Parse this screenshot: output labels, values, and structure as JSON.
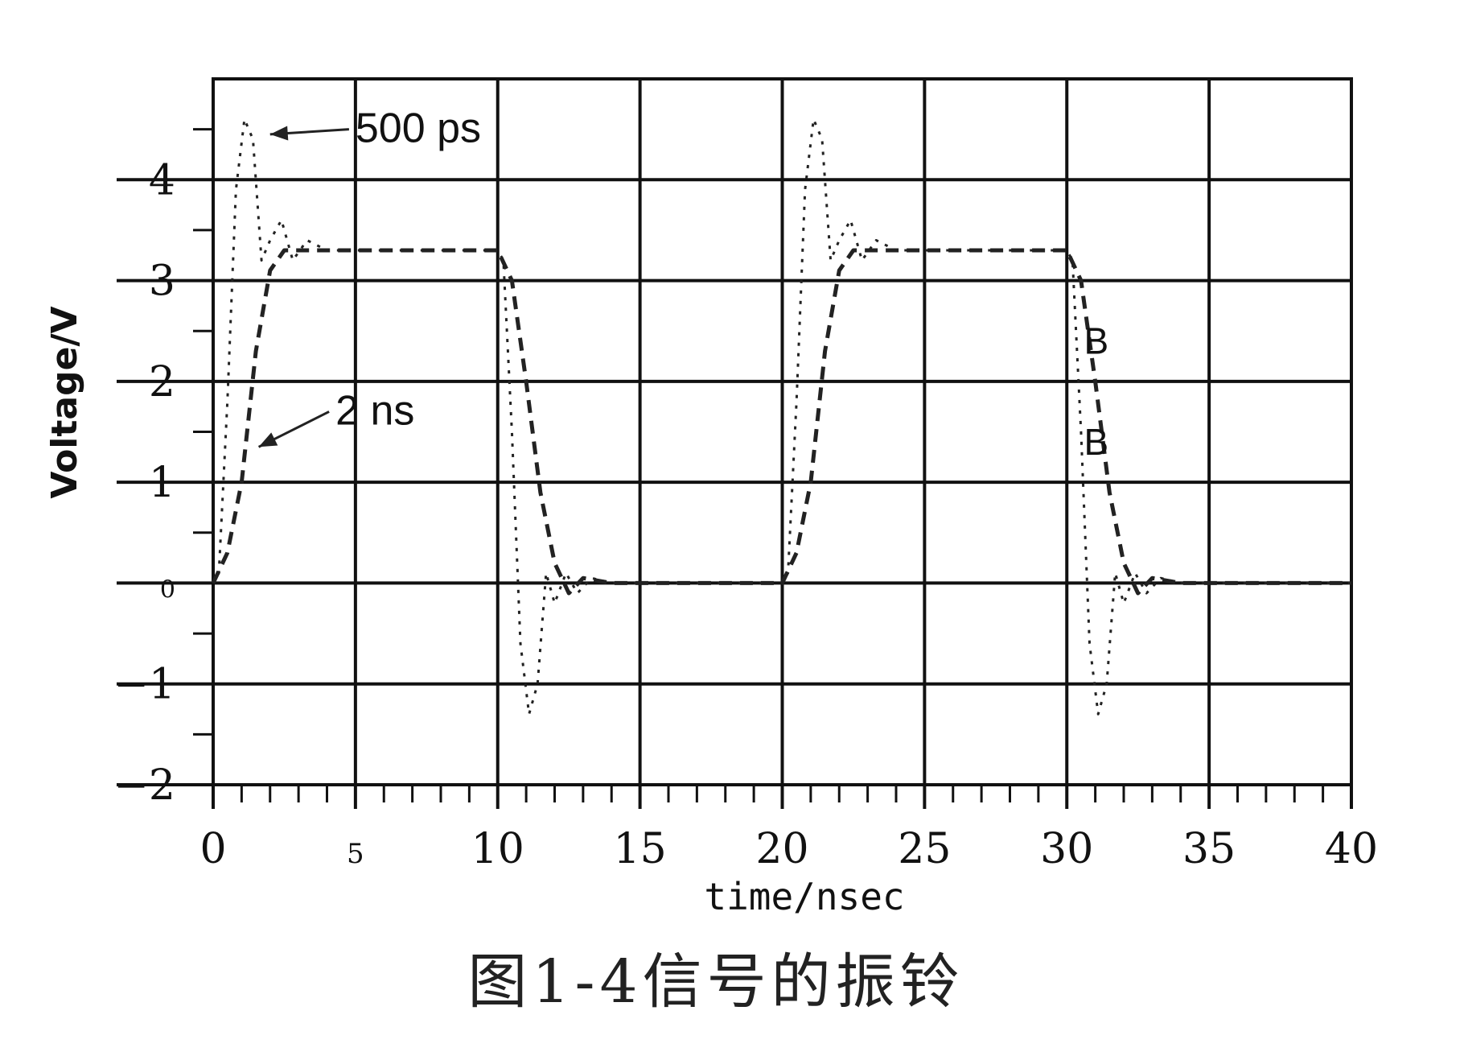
{
  "caption": "图1-4信号的振铃",
  "chart_data": {
    "type": "line",
    "title": "",
    "xlabel": "time/nsec",
    "ylabel": "Voltage/V",
    "xlim": [
      0,
      40
    ],
    "ylim": [
      -2,
      5
    ],
    "xticks": [
      0,
      5,
      10,
      15,
      20,
      25,
      30,
      35,
      40
    ],
    "xtick_labels": [
      "0",
      "5",
      "10",
      "15",
      "20",
      "25",
      "30",
      "35",
      "40"
    ],
    "yticks": [
      -2,
      -1,
      0,
      1,
      2,
      3,
      4
    ],
    "ytick_labels": [
      "−2",
      "−1",
      "0",
      "1",
      "2",
      "3",
      "4"
    ],
    "grid": true,
    "annotations": [
      {
        "text": "500 ps",
        "x": 5.0,
        "y": 4.5,
        "arrow_to": [
          2.0,
          4.45
        ]
      },
      {
        "text": "2 ns",
        "x": 4.3,
        "y": 1.7,
        "arrow_to": [
          1.6,
          1.35
        ]
      },
      {
        "text": "B",
        "x": 30.6,
        "y": 2.4
      },
      {
        "text": "B",
        "x": 30.6,
        "y": 1.4
      }
    ],
    "series": [
      {
        "style": "dotted",
        "x": [
          0,
          0.2,
          0.5,
          0.8,
          1.1,
          1.4,
          1.7,
          2.0,
          2.4,
          2.8,
          3.3,
          4.0,
          5.0,
          7.0,
          10.0,
          10.2,
          10.5,
          10.8,
          11.1,
          11.4,
          11.7,
          12.0,
          12.4,
          12.8,
          13.3,
          14.0,
          15.0,
          20.0,
          20.2,
          20.5,
          20.8,
          21.1,
          21.4,
          21.7,
          22.0,
          22.4,
          22.8,
          23.3,
          24.0,
          25.0,
          30.0,
          30.2,
          30.5,
          30.8,
          31.1,
          31.4,
          31.7,
          32.0,
          32.4,
          32.8,
          33.3,
          34.0,
          35.0,
          40.0
        ],
        "y": [
          0,
          0.1,
          1.8,
          3.9,
          4.6,
          4.4,
          3.2,
          3.4,
          3.6,
          3.2,
          3.4,
          3.3,
          3.3,
          3.3,
          3.3,
          3.2,
          1.5,
          -0.6,
          -1.3,
          -1.0,
          0.1,
          -0.2,
          0.1,
          -0.1,
          0.05,
          0,
          0,
          0,
          0.1,
          1.8,
          3.9,
          4.6,
          4.4,
          3.2,
          3.4,
          3.6,
          3.2,
          3.4,
          3.3,
          3.3,
          3.3,
          3.2,
          1.5,
          -0.6,
          -1.3,
          -1.0,
          0.1,
          -0.2,
          0.1,
          -0.1,
          0.05,
          0,
          0,
          0
        ]
      },
      {
        "style": "dashed",
        "x": [
          0,
          0.5,
          1.0,
          1.5,
          2.0,
          2.5,
          3.0,
          4.0,
          5.0,
          10.0,
          10.5,
          11.0,
          11.5,
          12.0,
          12.5,
          13.0,
          14.0,
          15.0,
          20.0,
          20.5,
          21.0,
          21.5,
          22.0,
          22.5,
          23.0,
          24.0,
          25.0,
          30.0,
          30.5,
          31.0,
          31.5,
          32.0,
          32.5,
          33.0,
          34.0,
          35.0,
          40.0
        ],
        "y": [
          0,
          0.3,
          1.0,
          2.3,
          3.1,
          3.3,
          3.3,
          3.3,
          3.3,
          3.3,
          3.0,
          2.0,
          0.9,
          0.2,
          -0.1,
          0.05,
          0,
          0,
          0,
          0.3,
          1.0,
          2.3,
          3.1,
          3.3,
          3.3,
          3.3,
          3.3,
          3.3,
          3.0,
          2.0,
          0.9,
          0.2,
          -0.1,
          0.05,
          0,
          0,
          0
        ]
      }
    ]
  }
}
